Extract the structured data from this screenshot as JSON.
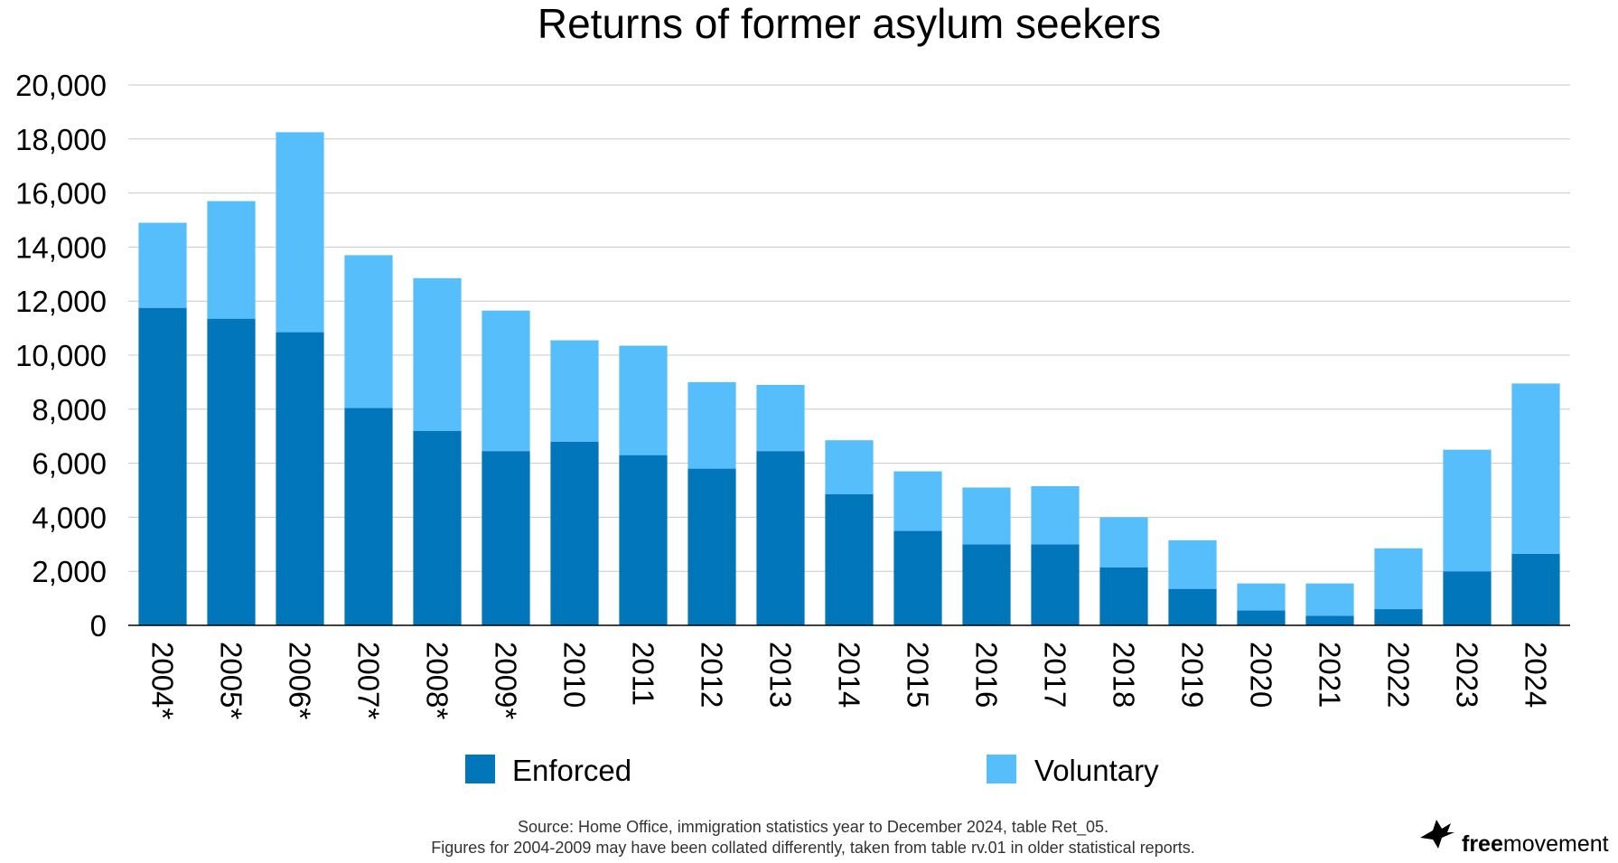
{
  "chart_data": {
    "type": "bar",
    "stacked": true,
    "title": "Returns of former asylum seekers",
    "xlabel": "",
    "ylabel": "",
    "ylim": [
      0,
      20000
    ],
    "yticks": [
      0,
      2000,
      4000,
      6000,
      8000,
      10000,
      12000,
      14000,
      16000,
      18000,
      20000
    ],
    "ytick_labels": [
      "0",
      "2,000",
      "4,000",
      "6,000",
      "8,000",
      "10,000",
      "12,000",
      "14,000",
      "16,000",
      "18,000",
      "20,000"
    ],
    "grid": true,
    "categories": [
      "2004*",
      "2005*",
      "2006*",
      "2007*",
      "2008*",
      "2009*",
      "2010",
      "2011",
      "2012",
      "2013",
      "2014",
      "2015",
      "2016",
      "2017",
      "2018",
      "2019",
      "2020",
      "2021",
      "2022",
      "2023",
      "2024"
    ],
    "series": [
      {
        "name": "Enforced",
        "color": "#0276BA",
        "values": [
          11750,
          11350,
          10850,
          8050,
          7200,
          6450,
          6800,
          6300,
          5800,
          6450,
          4850,
          3500,
          3000,
          3000,
          2150,
          1350,
          550,
          350,
          600,
          2000,
          2650
        ]
      },
      {
        "name": "Voluntary",
        "color": "#56BEFB",
        "values": [
          3150,
          4350,
          7400,
          5650,
          5650,
          5200,
          3750,
          4050,
          3200,
          2450,
          2000,
          2200,
          2100,
          2150,
          1850,
          1800,
          1000,
          1200,
          2250,
          4500,
          6300
        ]
      }
    ],
    "legend_position": "bottom"
  },
  "footer": {
    "source_line1": "Source: Home Office, immigration statistics year to December 2024, table Ret_05.",
    "source_line2": "Figures for 2004-2009 may have been collated differently, taken from table rv.01 in older statistical reports."
  },
  "brand": {
    "bold": "free",
    "regular": "movement",
    "icon": "bird-icon"
  }
}
